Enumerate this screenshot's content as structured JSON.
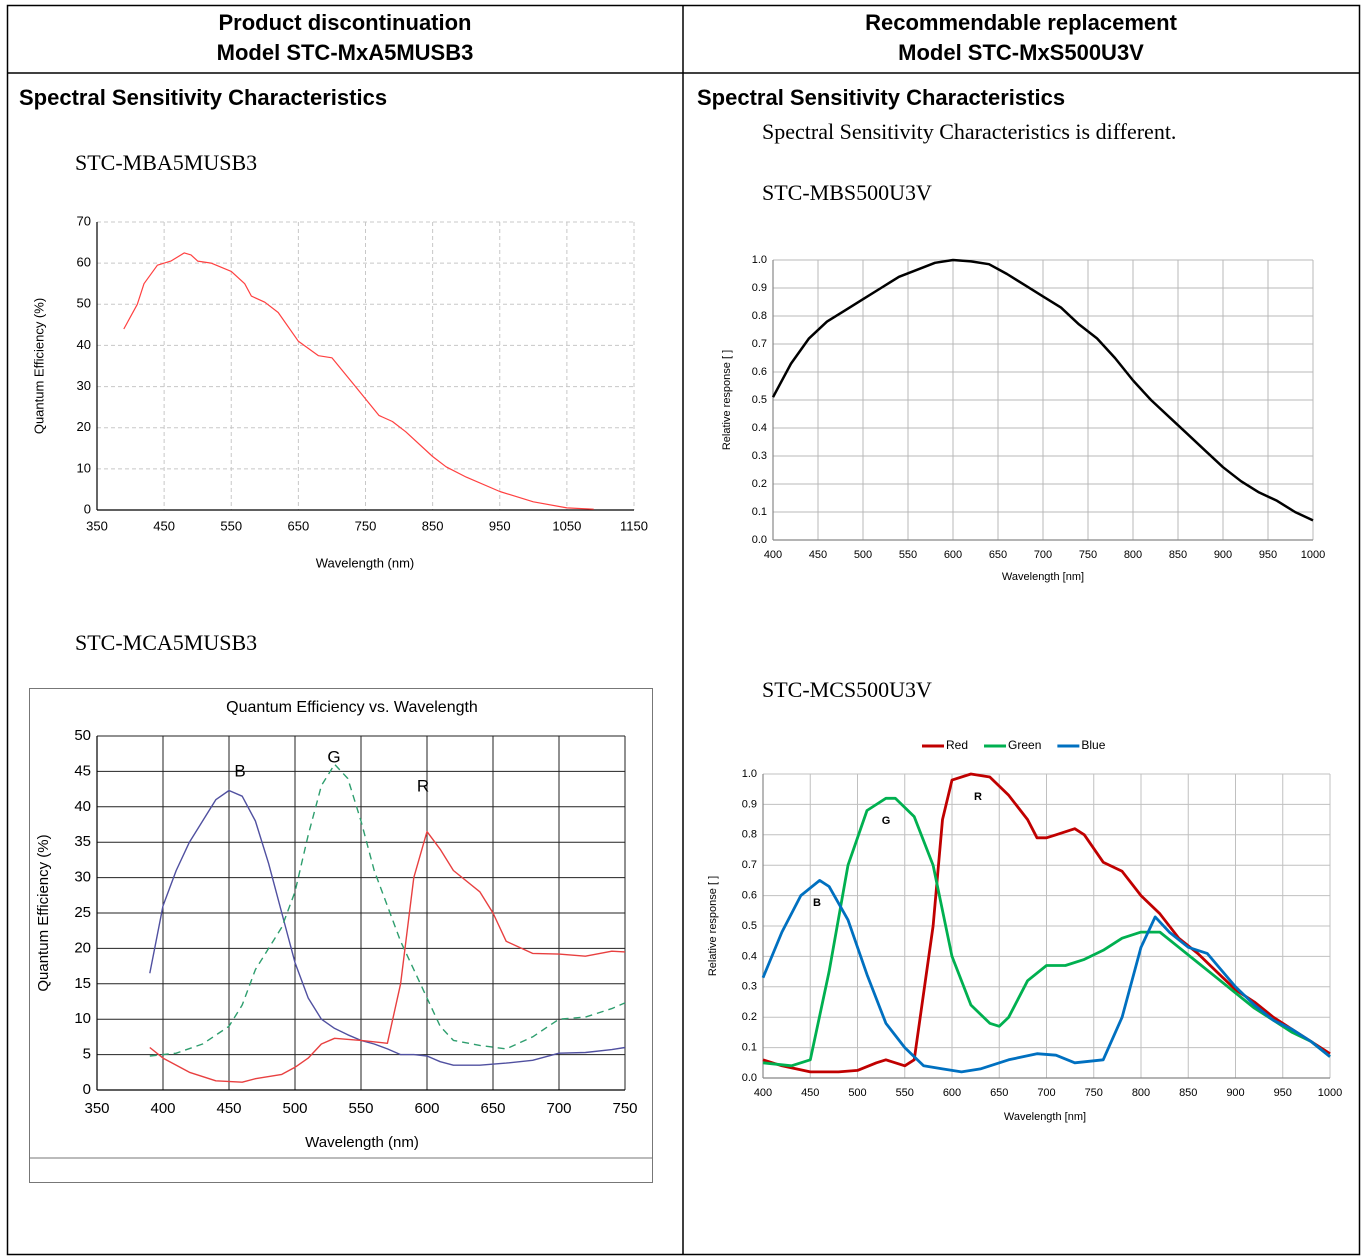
{
  "header": [
    {
      "line1": "Product discontinuation",
      "line2": "Model STC-MxA5MUSB3"
    },
    {
      "line1": "Recommendable replacement",
      "line2": "Model STC-MxS500U3V"
    }
  ],
  "columns": [
    {
      "heading": "Spectral Sensitivity Characteristics",
      "blocks": [
        {
          "label": "STC-MBA5MUSB3",
          "chart": {
            "type": "line",
            "xlabel": "Wavelength (nm)",
            "ylabel": "Quantum Efficiency (%)",
            "xlim": [
              350,
              1150
            ],
            "xticks": [
              350,
              450,
              550,
              650,
              750,
              850,
              950,
              1050,
              1150
            ],
            "ylim": [
              0,
              70
            ],
            "yticks": [
              0,
              10,
              20,
              30,
              40,
              50,
              60,
              70
            ],
            "grid": true,
            "grid_style": "dashed",
            "series": [
              {
                "color": "#ff4040",
                "x": [
                  390,
                  410,
                  420,
                  440,
                  460,
                  480,
                  490,
                  500,
                  520,
                  550,
                  570,
                  580,
                  600,
                  620,
                  650,
                  680,
                  700,
                  720,
                  750,
                  770,
                  790,
                  810,
                  850,
                  870,
                  900,
                  950,
                  1000,
                  1050,
                  1090
                ],
                "values": [
                  44,
                  50,
                  55,
                  59.5,
                  60.5,
                  62.5,
                  62,
                  60.5,
                  60,
                  58,
                  55,
                  52,
                  50.5,
                  48,
                  41,
                  37.5,
                  37,
                  33,
                  27,
                  23,
                  21.5,
                  19,
                  13,
                  10.5,
                  8,
                  4.5,
                  2,
                  0.5,
                  0.2
                ]
              }
            ]
          }
        },
        {
          "label": "STC-MCA5MUSB3",
          "chart": {
            "type": "line",
            "title": "Quantum Efficiency vs. Wavelength",
            "xlabel": "Wavelength (nm)",
            "ylabel": "Quantum Efficiency (%)",
            "xlim": [
              350,
              750
            ],
            "xticks": [
              350,
              400,
              450,
              500,
              550,
              600,
              650,
              700,
              750
            ],
            "ylim": [
              0,
              50
            ],
            "yticks": [
              0,
              5,
              10,
              15,
              20,
              25,
              30,
              35,
              40,
              45,
              50
            ],
            "grid": true,
            "grid_style": "solid",
            "annotations": [
              "B",
              "G",
              "R"
            ],
            "series": [
              {
                "color": "#5050a0",
                "x": [
                  390,
                  400,
                  410,
                  420,
                  430,
                  440,
                  450,
                  460,
                  470,
                  480,
                  490,
                  500,
                  510,
                  520,
                  530,
                  540,
                  550,
                  560,
                  570,
                  580,
                  590,
                  600,
                  610,
                  620,
                  640,
                  660,
                  680,
                  700,
                  720,
                  740,
                  750
                ],
                "values": [
                  16.5,
                  26,
                  31,
                  35,
                  38,
                  41,
                  42.3,
                  41.5,
                  38,
                  32,
                  25,
                  18,
                  13,
                  10,
                  8.7,
                  7.8,
                  7,
                  6.5,
                  5.8,
                  5,
                  5,
                  4.8,
                  4,
                  3.5,
                  3.5,
                  3.8,
                  4.2,
                  5.2,
                  5.3,
                  5.7,
                  6
                ]
              },
              {
                "color": "#2e9e6e",
                "dashed": true,
                "x": [
                  390,
                  410,
                  430,
                  450,
                  460,
                  470,
                  480,
                  490,
                  500,
                  510,
                  520,
                  530,
                  540,
                  550,
                  560,
                  570,
                  580,
                  590,
                  600,
                  610,
                  620,
                  640,
                  660,
                  680,
                  700,
                  720,
                  740,
                  750
                ],
                "values": [
                  4.8,
                  5.2,
                  6.5,
                  9,
                  12,
                  17,
                  20,
                  23,
                  28,
                  36,
                  43,
                  46,
                  44,
                  38,
                  31,
                  26,
                  21,
                  17,
                  13,
                  9,
                  7,
                  6.3,
                  5.8,
                  7.5,
                  10,
                  10.3,
                  11.5,
                  12.3
                ]
              },
              {
                "color": "#e84040",
                "x": [
                  390,
                  400,
                  420,
                  440,
                  460,
                  470,
                  490,
                  500,
                  510,
                  520,
                  530,
                  550,
                  570,
                  580,
                  590,
                  600,
                  610,
                  620,
                  640,
                  650,
                  660,
                  680,
                  700,
                  720,
                  740,
                  750
                ],
                "values": [
                  6,
                  4.5,
                  2.5,
                  1.3,
                  1.1,
                  1.6,
                  2.2,
                  3.2,
                  4.5,
                  6.5,
                  7.3,
                  7,
                  6.6,
                  15,
                  30,
                  36.5,
                  34,
                  31,
                  28,
                  25,
                  21,
                  19.3,
                  19.2,
                  18.9,
                  19.6,
                  19.5
                ]
              }
            ]
          }
        }
      ]
    },
    {
      "heading": "Spectral Sensitivity Characteristics",
      "note": "Spectral Sensitivity Characteristics is different.",
      "blocks": [
        {
          "label": "STC-MBS500U3V",
          "chart": {
            "type": "line",
            "xlabel": "Wavelength [nm]",
            "ylabel": "Relative response [ ]",
            "xlim": [
              400,
              1000
            ],
            "xticks": [
              400,
              450,
              500,
              550,
              600,
              650,
              700,
              750,
              800,
              850,
              900,
              950,
              1000
            ],
            "ylim": [
              0,
              1
            ],
            "yticks": [
              {
                "value": 0,
                "label": "0.0"
              },
              0.1,
              0.2,
              0.3,
              0.4,
              0.5,
              0.6,
              0.7,
              0.8,
              0.9,
              {
                "value": 1,
                "label": "1.0"
              }
            ],
            "grid": true,
            "grid_style": "solid",
            "series": [
              {
                "color": "#000000",
                "x": [
                  400,
                  420,
                  440,
                  460,
                  480,
                  500,
                  520,
                  540,
                  560,
                  580,
                  600,
                  620,
                  640,
                  660,
                  680,
                  700,
                  720,
                  740,
                  760,
                  780,
                  800,
                  820,
                  840,
                  860,
                  880,
                  900,
                  920,
                  940,
                  960,
                  980,
                  1000
                ],
                "values": [
                  0.51,
                  0.63,
                  0.72,
                  0.78,
                  0.82,
                  0.86,
                  0.9,
                  0.94,
                  0.965,
                  0.99,
                  1.0,
                  0.995,
                  0.985,
                  0.95,
                  0.91,
                  0.87,
                  0.83,
                  0.77,
                  0.72,
                  0.65,
                  0.57,
                  0.5,
                  0.44,
                  0.38,
                  0.32,
                  0.26,
                  0.21,
                  0.17,
                  0.14,
                  0.1,
                  0.07
                ]
              }
            ]
          }
        },
        {
          "label": "STC-MCS500U3V",
          "chart": {
            "type": "line",
            "xlabel": "Wavelength  [nm]",
            "ylabel": "Relative  response [ ]",
            "xlim": [
              400,
              1000
            ],
            "xticks": [
              400,
              450,
              500,
              550,
              600,
              650,
              700,
              750,
              800,
              850,
              900,
              950,
              1000
            ],
            "ylim": [
              0,
              1
            ],
            "yticks": [
              {
                "value": 0,
                "label": "0.0"
              },
              0.1,
              0.2,
              0.3,
              0.4,
              0.5,
              0.6,
              0.7,
              0.8,
              0.9,
              {
                "value": 1,
                "label": "1.0"
              }
            ],
            "grid": true,
            "grid_style": "solid",
            "legend": "top",
            "annotations": [
              "B",
              "G",
              "R"
            ],
            "series": [
              {
                "name": "Red",
                "color": "#c00000",
                "x": [
                  400,
                  420,
                  450,
                  480,
                  500,
                  520,
                  530,
                  550,
                  560,
                  580,
                  590,
                  600,
                  620,
                  640,
                  660,
                  680,
                  690,
                  700,
                  710,
                  730,
                  740,
                  760,
                  780,
                  800,
                  820,
                  840,
                  860,
                  880,
                  900,
                  920,
                  940,
                  960,
                  980,
                  1000
                ],
                "values": [
                  0.06,
                  0.04,
                  0.02,
                  0.02,
                  0.025,
                  0.05,
                  0.06,
                  0.04,
                  0.06,
                  0.5,
                  0.85,
                  0.98,
                  1.0,
                  0.99,
                  0.93,
                  0.85,
                  0.79,
                  0.79,
                  0.8,
                  0.82,
                  0.8,
                  0.71,
                  0.68,
                  0.6,
                  0.54,
                  0.46,
                  0.41,
                  0.35,
                  0.29,
                  0.25,
                  0.2,
                  0.16,
                  0.12,
                  0.08
                ]
              },
              {
                "name": "Green",
                "color": "#00b050",
                "x": [
                  400,
                  430,
                  450,
                  470,
                  490,
                  510,
                  530,
                  540,
                  560,
                  580,
                  600,
                  620,
                  640,
                  650,
                  660,
                  680,
                  700,
                  720,
                  740,
                  760,
                  780,
                  800,
                  820,
                  840,
                  860,
                  880,
                  900,
                  920,
                  940,
                  960,
                  980,
                  1000
                ],
                "values": [
                  0.05,
                  0.04,
                  0.06,
                  0.35,
                  0.7,
                  0.88,
                  0.92,
                  0.92,
                  0.86,
                  0.7,
                  0.4,
                  0.24,
                  0.18,
                  0.17,
                  0.2,
                  0.32,
                  0.37,
                  0.37,
                  0.39,
                  0.42,
                  0.46,
                  0.48,
                  0.48,
                  0.43,
                  0.38,
                  0.33,
                  0.28,
                  0.23,
                  0.19,
                  0.15,
                  0.12,
                  0.07
                ]
              },
              {
                "name": "Blue",
                "color": "#0070c0",
                "x": [
                  400,
                  420,
                  440,
                  460,
                  470,
                  490,
                  510,
                  530,
                  550,
                  570,
                  590,
                  610,
                  630,
                  660,
                  690,
                  710,
                  730,
                  760,
                  780,
                  800,
                  815,
                  830,
                  850,
                  870,
                  900,
                  920,
                  940,
                  960,
                  980,
                  1000
                ],
                "values": [
                  0.33,
                  0.48,
                  0.6,
                  0.65,
                  0.63,
                  0.52,
                  0.34,
                  0.18,
                  0.1,
                  0.04,
                  0.03,
                  0.02,
                  0.03,
                  0.06,
                  0.08,
                  0.075,
                  0.05,
                  0.06,
                  0.2,
                  0.43,
                  0.53,
                  0.48,
                  0.43,
                  0.41,
                  0.3,
                  0.24,
                  0.19,
                  0.16,
                  0.12,
                  0.07
                ]
              }
            ]
          }
        }
      ]
    }
  ]
}
